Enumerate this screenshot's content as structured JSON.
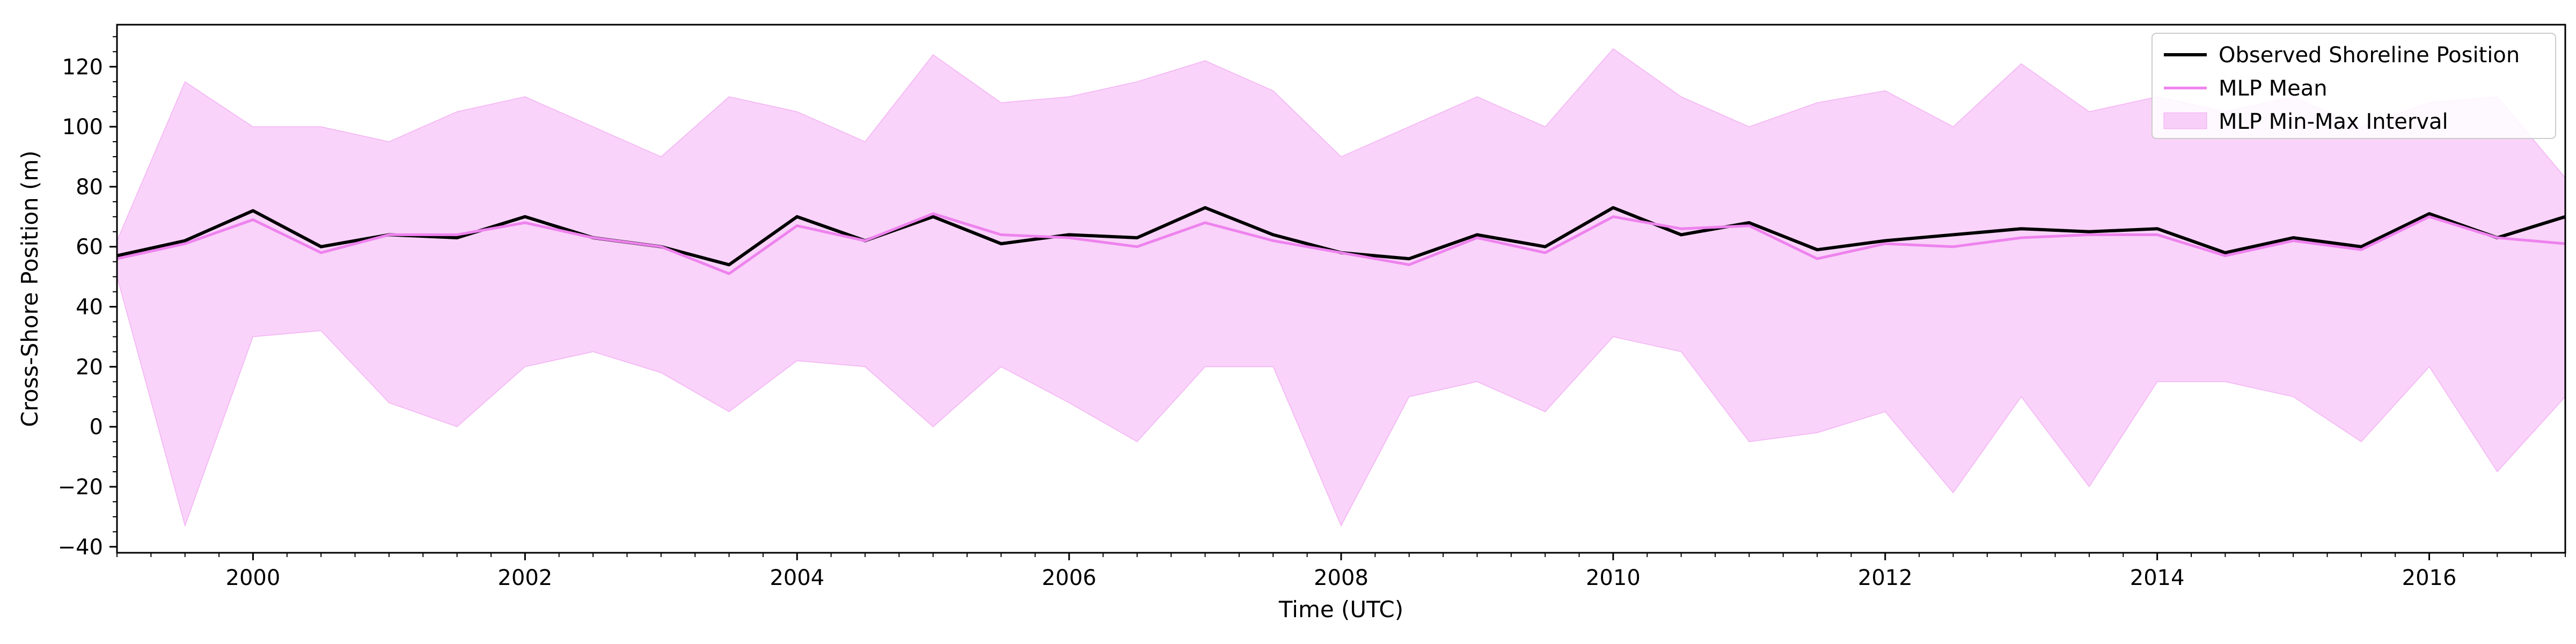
{
  "chart_data": {
    "type": "line",
    "title": "",
    "xlabel": "Time (UTC)",
    "ylabel": "Cross-Shore Position (m)",
    "xlim": [
      1999.0,
      2017.0
    ],
    "ylim": [
      -42,
      134
    ],
    "xticks": [
      2000,
      2002,
      2004,
      2006,
      2008,
      2010,
      2012,
      2014,
      2016
    ],
    "yticks": [
      -40,
      -20,
      0,
      20,
      40,
      60,
      80,
      100,
      120
    ],
    "grid": false,
    "legend_position": "top-right",
    "colors": {
      "observed": "#000000",
      "mean": "#ee82ee",
      "band_fill": "#ee82ee",
      "band_alpha": 0.35
    },
    "series": [
      {
        "name": "Observed Shoreline Position",
        "kind": "line",
        "x": [
          1999.0,
          1999.5,
          2000.0,
          2000.5,
          2001.0,
          2001.5,
          2002.0,
          2002.5,
          2003.0,
          2003.5,
          2004.0,
          2004.5,
          2005.0,
          2005.5,
          2006.0,
          2006.5,
          2007.0,
          2007.5,
          2008.0,
          2008.5,
          2009.0,
          2009.5,
          2010.0,
          2010.5,
          2011.0,
          2011.5,
          2012.0,
          2012.5,
          2013.0,
          2013.5,
          2014.0,
          2014.5,
          2015.0,
          2015.5,
          2016.0,
          2016.5,
          2017.0
        ],
        "y": [
          57,
          62,
          72,
          60,
          64,
          63,
          70,
          63,
          60,
          54,
          70,
          62,
          70,
          61,
          64,
          63,
          73,
          64,
          58,
          56,
          64,
          60,
          73,
          64,
          68,
          59,
          62,
          64,
          66,
          65,
          66,
          58,
          63,
          60,
          71,
          63,
          70
        ]
      },
      {
        "name": "MLP Mean",
        "kind": "line",
        "x": [
          1999.0,
          1999.5,
          2000.0,
          2000.5,
          2001.0,
          2001.5,
          2002.0,
          2002.5,
          2003.0,
          2003.5,
          2004.0,
          2004.5,
          2005.0,
          2005.5,
          2006.0,
          2006.5,
          2007.0,
          2007.5,
          2008.0,
          2008.5,
          2009.0,
          2009.5,
          2010.0,
          2010.5,
          2011.0,
          2011.5,
          2012.0,
          2012.5,
          2013.0,
          2013.5,
          2014.0,
          2014.5,
          2015.0,
          2015.5,
          2016.0,
          2016.5,
          2017.0
        ],
        "y": [
          56,
          61,
          69,
          58,
          64,
          64,
          68,
          63,
          60,
          51,
          67,
          62,
          71,
          64,
          63,
          60,
          68,
          62,
          58,
          54,
          63,
          58,
          70,
          66,
          67,
          56,
          61,
          60,
          63,
          64,
          64,
          57,
          62,
          59,
          70,
          63,
          61
        ]
      },
      {
        "name": "MLP Min-Max Interval",
        "kind": "band",
        "x": [
          1999.0,
          1999.5,
          2000.0,
          2000.5,
          2001.0,
          2001.5,
          2002.0,
          2002.5,
          2003.0,
          2003.5,
          2004.0,
          2004.5,
          2005.0,
          2005.5,
          2006.0,
          2006.5,
          2007.0,
          2007.5,
          2008.0,
          2008.5,
          2009.0,
          2009.5,
          2010.0,
          2010.5,
          2011.0,
          2011.5,
          2012.0,
          2012.5,
          2013.0,
          2013.5,
          2014.0,
          2014.5,
          2015.0,
          2015.5,
          2016.0,
          2016.5,
          2017.0
        ],
        "low": [
          50,
          -33,
          30,
          32,
          8,
          0,
          20,
          25,
          18,
          5,
          22,
          20,
          0,
          20,
          8,
          -5,
          20,
          20,
          -33,
          10,
          15,
          5,
          30,
          25,
          -5,
          -2,
          5,
          -22,
          10,
          -20,
          15,
          15,
          10,
          -5,
          20,
          -15,
          10
        ],
        "high": [
          62,
          115,
          100,
          100,
          95,
          105,
          110,
          100,
          90,
          110,
          105,
          95,
          124,
          108,
          110,
          115,
          122,
          112,
          90,
          100,
          110,
          100,
          126,
          110,
          100,
          108,
          112,
          100,
          121,
          105,
          110,
          105,
          110,
          100,
          108,
          110,
          83
        ]
      }
    ]
  }
}
